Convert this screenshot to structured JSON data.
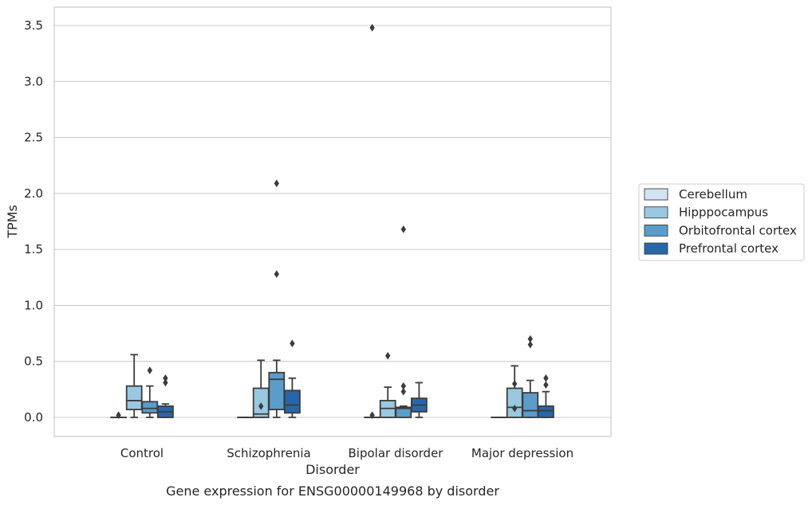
{
  "chart_data": {
    "type": "box",
    "xlabel": "Disorder",
    "ylabel": "TPMs",
    "caption": "Gene expression for ENSG00000149968 by disorder",
    "categories": [
      "Control",
      "Schizophrenia",
      "Bipolar disorder",
      "Major depression"
    ],
    "y_ticks": [
      "0.0",
      "0.5",
      "1.0",
      "1.5",
      "2.0",
      "2.5",
      "3.0",
      "3.5"
    ],
    "ylim": [
      -0.17,
      3.66
    ],
    "grid": "horizontal",
    "legend_position": "right",
    "series": [
      {
        "name": "Cerebellum",
        "color": "#d2e3f3",
        "boxes": [
          {
            "q1": 0,
            "median": 0,
            "q3": 0,
            "whisker_low": 0,
            "whisker_high": 0,
            "outliers": [
              0.02
            ]
          },
          {
            "q1": 0,
            "median": 0,
            "q3": 0,
            "whisker_low": 0,
            "whisker_high": 0,
            "outliers": []
          },
          {
            "q1": 0,
            "median": 0,
            "q3": 0,
            "whisker_low": 0,
            "whisker_high": 0,
            "outliers": [
              0.02,
              3.48
            ]
          },
          {
            "q1": 0,
            "median": 0,
            "q3": 0,
            "whisker_low": 0,
            "whisker_high": 0,
            "outliers": []
          }
        ]
      },
      {
        "name": "Hipppocampus",
        "color": "#9ac8e0",
        "boxes": [
          {
            "q1": 0.07,
            "median": 0.15,
            "q3": 0.28,
            "whisker_low": 0,
            "whisker_high": 0.56,
            "outliers": []
          },
          {
            "q1": 0,
            "median": 0.03,
            "q3": 0.26,
            "whisker_low": 0,
            "whisker_high": 0.51,
            "outliers": [
              0.1
            ]
          },
          {
            "q1": 0,
            "median": 0.08,
            "q3": 0.15,
            "whisker_low": 0,
            "whisker_high": 0.27,
            "outliers": [
              0.55
            ]
          },
          {
            "q1": 0,
            "median": 0.09,
            "q3": 0.26,
            "whisker_low": 0,
            "whisker_high": 0.46,
            "outliers": [
              0.08,
              0.3
            ]
          }
        ]
      },
      {
        "name": "Orbitofrontal cortex",
        "color": "#5b9ccb",
        "boxes": [
          {
            "q1": 0.04,
            "median": 0.08,
            "q3": 0.14,
            "whisker_low": 0,
            "whisker_high": 0.28,
            "outliers": [
              0.42
            ]
          },
          {
            "q1": 0.07,
            "median": 0.34,
            "q3": 0.4,
            "whisker_low": 0,
            "whisker_high": 0.51,
            "outliers": [
              1.28,
              2.09
            ]
          },
          {
            "q1": 0,
            "median": 0.08,
            "q3": 0.09,
            "whisker_low": 0,
            "whisker_high": 0.1,
            "outliers": [
              0.23,
              0.28,
              1.68
            ]
          },
          {
            "q1": 0,
            "median": 0.06,
            "q3": 0.22,
            "whisker_low": 0,
            "whisker_high": 0.33,
            "outliers": [
              0.65,
              0.7
            ]
          }
        ]
      },
      {
        "name": "Prefrontal cortex",
        "color": "#2767a9",
        "boxes": [
          {
            "q1": 0,
            "median": 0.05,
            "q3": 0.1,
            "whisker_low": 0,
            "whisker_high": 0.12,
            "outliers": [
              0.31,
              0.35
            ]
          },
          {
            "q1": 0.04,
            "median": 0.11,
            "q3": 0.24,
            "whisker_low": 0,
            "whisker_high": 0.35,
            "outliers": [
              0.66
            ]
          },
          {
            "q1": 0.05,
            "median": 0.11,
            "q3": 0.17,
            "whisker_low": 0,
            "whisker_high": 0.31,
            "outliers": []
          },
          {
            "q1": 0,
            "median": 0.06,
            "q3": 0.1,
            "whisker_low": 0,
            "whisker_high": 0.23,
            "outliers": [
              0.29,
              0.35
            ]
          }
        ]
      }
    ]
  }
}
